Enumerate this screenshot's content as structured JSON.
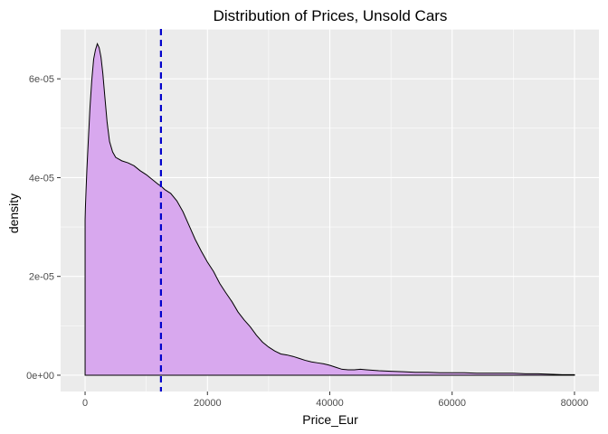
{
  "chart_data": {
    "type": "area",
    "title": "Distribution of Prices, Unsold Cars",
    "xlabel": "Price_Eur",
    "ylabel": "density",
    "xlim": [
      -4000,
      84000
    ],
    "ylim": [
      -3.3e-06,
      7.01e-05
    ],
    "x_ticks": [
      {
        "value": 0,
        "label": "0"
      },
      {
        "value": 20000,
        "label": "20000"
      },
      {
        "value": 40000,
        "label": "40000"
      },
      {
        "value": 60000,
        "label": "60000"
      },
      {
        "value": 80000,
        "label": "80000"
      }
    ],
    "y_ticks": [
      {
        "value": 0,
        "label": "0e+00"
      },
      {
        "value": 2e-05,
        "label": "2e-05"
      },
      {
        "value": 4e-05,
        "label": "4e-05"
      },
      {
        "value": 6e-05,
        "label": "6e-05"
      }
    ],
    "grid": true,
    "legend": "none",
    "series": [
      {
        "fill_color": "#D8A8EE",
        "line_color": "#000000",
        "x": [
          0,
          50,
          150,
          300,
          500,
          800,
          1100,
          1400,
          1700,
          2000,
          2300,
          2600,
          2900,
          3200,
          3600,
          4000,
          4500,
          5000,
          6000,
          7000,
          8000,
          9000,
          10000,
          11000,
          12000,
          12400,
          13000,
          14000,
          15000,
          16000,
          17000,
          18000,
          19000,
          20000,
          21000,
          22000,
          23000,
          24000,
          25000,
          26000,
          27000,
          28000,
          29000,
          30000,
          31000,
          32000,
          33000,
          34000,
          35000,
          36000,
          37000,
          38000,
          39000,
          40000,
          41000,
          42000,
          43000,
          44000,
          45000,
          46000,
          47000,
          48000,
          50000,
          52000,
          54000,
          56000,
          58000,
          60000,
          62000,
          64000,
          66000,
          68000,
          70000,
          72000,
          74000,
          76000,
          78000,
          80000
        ],
        "y": [
          3.14e-05,
          3.39e-05,
          3.73e-05,
          4.18e-05,
          4.69e-05,
          5.42e-05,
          5.98e-05,
          6.4e-05,
          6.59e-05,
          6.71e-05,
          6.63e-05,
          6.44e-05,
          6.11e-05,
          5.68e-05,
          5.12e-05,
          4.73e-05,
          4.52e-05,
          4.41e-05,
          4.34e-05,
          4.3e-05,
          4.24e-05,
          4.14e-05,
          4.06e-05,
          3.96e-05,
          3.86e-05,
          3.83e-05,
          3.76e-05,
          3.68e-05,
          3.53e-05,
          3.31e-05,
          3.03e-05,
          2.75e-05,
          2.51e-05,
          2.29e-05,
          2.1e-05,
          1.86e-05,
          1.67e-05,
          1.49e-05,
          1.28e-05,
          1.12e-05,
          9.8e-06,
          8.1e-06,
          6.7e-06,
          5.7e-06,
          4.9e-06,
          4.3e-06,
          4.1e-06,
          3.8e-06,
          3.4e-06,
          3e-06,
          2.7e-06,
          2.5e-06,
          2.3e-06,
          2e-06,
          1.6e-06,
          1.2e-06,
          1.1e-06,
          1.1e-06,
          1.2e-06,
          1.1e-06,
          1e-06,
          9e-07,
          8e-07,
          7e-07,
          6e-07,
          6e-07,
          5e-07,
          5e-07,
          5e-07,
          4e-07,
          4e-07,
          4e-07,
          4e-07,
          3e-07,
          3e-07,
          2e-07,
          1e-07,
          1e-07
        ]
      }
    ],
    "reference_line": {
      "type": "vertical",
      "x": 12400,
      "color": "#0000CC",
      "style": "dashed"
    },
    "panel_background": "#EBEBEB",
    "grid_color": "#FFFFFF"
  }
}
